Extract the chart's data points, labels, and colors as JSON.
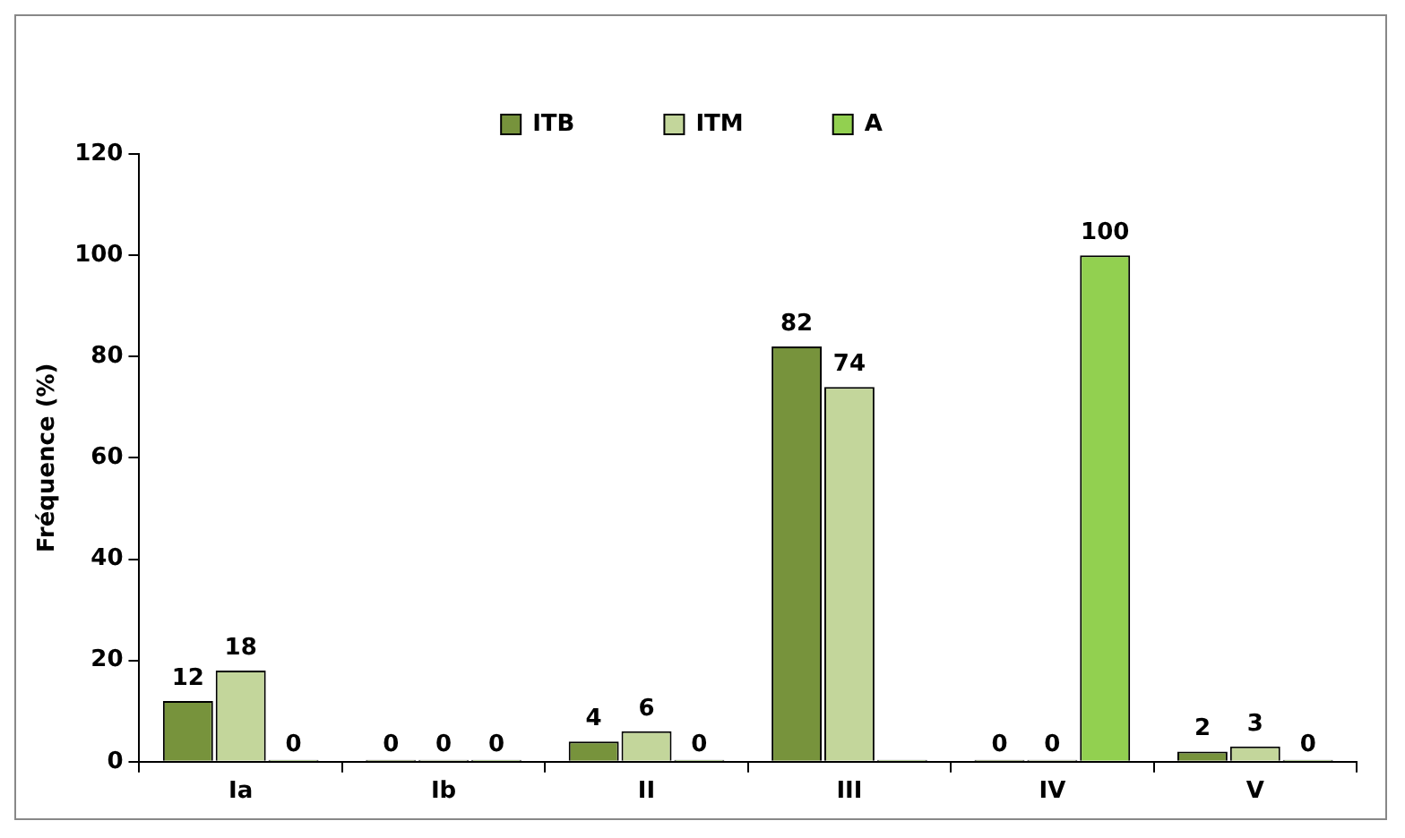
{
  "chart_data": {
    "type": "bar",
    "ylabel": "Fréquence (%)",
    "categories": [
      "Ia",
      "Ib",
      "II",
      "III",
      "IV",
      "V"
    ],
    "series": [
      {
        "name": "ITB",
        "color": "#77933c",
        "values": [
          12,
          0,
          4,
          82,
          0,
          2
        ],
        "value_labels": [
          "12",
          "0",
          "4",
          "82",
          "0",
          "2"
        ]
      },
      {
        "name": "ITM",
        "color": "#c3d69b",
        "values": [
          18,
          0,
          6,
          74,
          0,
          3
        ],
        "value_labels": [
          "18",
          "0",
          "6",
          "74",
          "0",
          "3"
        ]
      },
      {
        "name": "A",
        "color": "#92d050",
        "values": [
          0,
          0,
          0,
          0,
          100,
          0
        ],
        "value_labels": [
          "0",
          "0",
          "0",
          null,
          "100",
          "0"
        ]
      }
    ],
    "ylim": [
      0,
      120
    ],
    "yticks": [
      0,
      20,
      40,
      60,
      80,
      100,
      120
    ],
    "grid": false,
    "legend": "top"
  }
}
